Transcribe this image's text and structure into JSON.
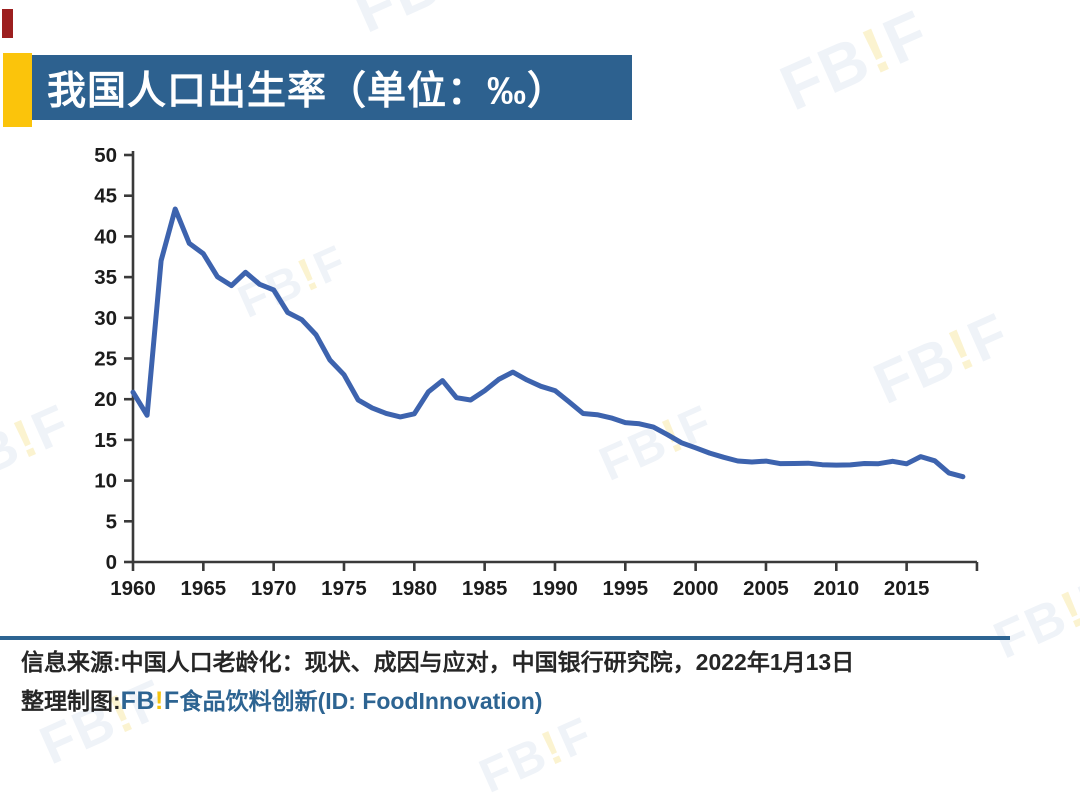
{
  "header": {
    "title": "我国人口出生率（单位：‰）",
    "banner_color": "#2D618F",
    "accent_color": "#FBC40B"
  },
  "chart_data": {
    "type": "line",
    "title": "我国人口出生率（单位：‰）",
    "series_name": "人口出生率",
    "unit": "‰",
    "x": [
      1960,
      1961,
      1962,
      1963,
      1964,
      1965,
      1966,
      1967,
      1968,
      1969,
      1970,
      1971,
      1972,
      1973,
      1974,
      1975,
      1976,
      1977,
      1978,
      1979,
      1980,
      1981,
      1982,
      1983,
      1984,
      1985,
      1986,
      1987,
      1988,
      1989,
      1990,
      1991,
      1992,
      1993,
      1994,
      1995,
      1996,
      1997,
      1998,
      1999,
      2000,
      2001,
      2002,
      2003,
      2004,
      2005,
      2006,
      2007,
      2008,
      2009,
      2010,
      2011,
      2012,
      2013,
      2014,
      2015,
      2016,
      2017,
      2018,
      2019
    ],
    "values": [
      20.86,
      18.02,
      37.01,
      43.37,
      39.14,
      37.88,
      35.05,
      33.96,
      35.59,
      34.11,
      33.43,
      30.65,
      29.77,
      27.93,
      24.82,
      23.01,
      19.91,
      18.93,
      18.25,
      17.82,
      18.21,
      20.91,
      22.28,
      20.19,
      19.9,
      21.04,
      22.43,
      23.33,
      22.37,
      21.58,
      21.06,
      19.68,
      18.24,
      18.09,
      17.7,
      17.12,
      16.98,
      16.57,
      15.64,
      14.64,
      14.03,
      13.38,
      12.86,
      12.41,
      12.29,
      12.4,
      12.09,
      12.1,
      12.14,
      11.95,
      11.9,
      11.93,
      12.1,
      12.08,
      12.37,
      12.07,
      12.95,
      12.43,
      10.94,
      10.48
    ],
    "ylim": [
      0,
      50
    ],
    "yticks": [
      0,
      5,
      10,
      15,
      20,
      25,
      30,
      35,
      40,
      45,
      50
    ],
    "xticks": [
      1960,
      1965,
      1970,
      1975,
      1980,
      1985,
      1990,
      1995,
      2000,
      2005,
      2010,
      2015
    ],
    "xaxis_end": 2020,
    "line_color": "#3D63AE",
    "axis_color": "#3A3A3A",
    "tick_label_color": "#1C1C1C",
    "grid": false,
    "legend": "none"
  },
  "footer": {
    "source_label": "信息来源:",
    "source_text": "中国人口老龄化：现状、成因与应对，中国银行研究院，2022年1月13日",
    "credit_label": "整理制图:",
    "logo_fb": "FB",
    "logo_bang": "!",
    "logo_f": "F",
    "credit_text": "食品饮料创新(ID: FoodInnovation)",
    "brand_color": "#2D6492",
    "logo_accent_color": "#F5C411"
  },
  "watermark": {
    "fb": "FB",
    "bang": "!",
    "f": "F"
  }
}
